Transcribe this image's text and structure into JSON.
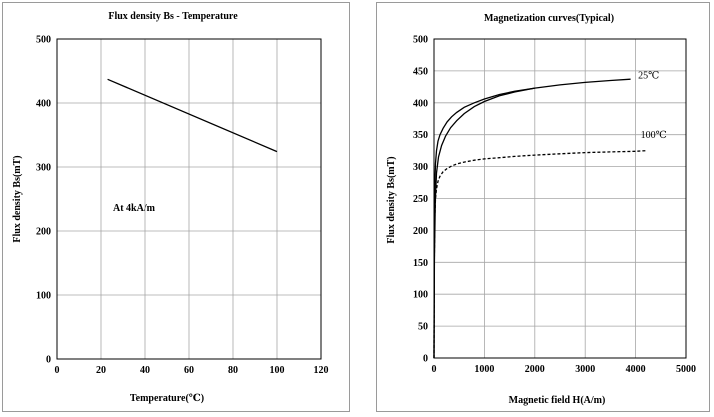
{
  "chart_data": [
    {
      "type": "line",
      "title": "Flux density Bs - Temperature",
      "xlabel": "Temperature(℃)",
      "ylabel": "Flux density Bs(mT)",
      "xlim": [
        0,
        120
      ],
      "ylim": [
        0,
        500
      ],
      "xticks": [
        0,
        20,
        40,
        60,
        80,
        100,
        120
      ],
      "yticks": [
        0,
        100,
        200,
        300,
        400,
        500
      ],
      "grid": true,
      "annotation": "At  4kA/m",
      "series": [
        {
          "x": [
            23,
            100
          ],
          "y": [
            437,
            324
          ],
          "color": "#000000",
          "dash": "solid"
        }
      ]
    },
    {
      "type": "line",
      "title": "Magnetization curves(Typical)",
      "xlabel": "Magnetic field H(A/m)",
      "ylabel": "Flux density Bs(mT)",
      "xlim": [
        0,
        5000
      ],
      "ylim": [
        0,
        500
      ],
      "xticks": [
        0,
        1000,
        2000,
        3000,
        4000,
        5000
      ],
      "yticks": [
        0,
        50,
        100,
        150,
        200,
        250,
        300,
        350,
        400,
        450,
        500
      ],
      "grid": true,
      "series": [
        {
          "name": "25℃",
          "color": "#000000",
          "dash": "solid",
          "x": [
            0,
            5,
            15,
            30,
            50,
            80,
            120,
            180,
            260,
            350,
            450,
            600,
            800,
            1000,
            1300,
            1600,
            2000,
            2500,
            3000,
            3500,
            3900
          ],
          "y": [
            0,
            180,
            270,
            305,
            325,
            340,
            350,
            360,
            370,
            378,
            385,
            393,
            400,
            406,
            413,
            418,
            423,
            428,
            432,
            435,
            437
          ]
        },
        {
          "name": "25℃",
          "color": "#000000",
          "dash": "solid",
          "x": [
            0,
            8,
            25,
            50,
            90,
            150,
            230,
            330,
            450,
            600,
            800,
            1000,
            1300,
            1600,
            2000
          ],
          "y": [
            0,
            150,
            245,
            290,
            315,
            333,
            348,
            361,
            372,
            383,
            394,
            402,
            411,
            417,
            423
          ]
        },
        {
          "name": "100℃",
          "color": "#000000",
          "dash": "dashed",
          "x": [
            0,
            5,
            15,
            30,
            50,
            80,
            120,
            180,
            260,
            350,
            450,
            600,
            800,
            1000,
            1300,
            1600,
            2000,
            2500,
            3000,
            3500,
            4000,
            4200
          ],
          "y": [
            0,
            150,
            220,
            250,
            265,
            277,
            285,
            292,
            297,
            301,
            304,
            307,
            310,
            312,
            314,
            316,
            318,
            320,
            322,
            323,
            324,
            325
          ]
        }
      ],
      "labels": [
        {
          "text": "25℃",
          "x": 4050,
          "y": 438
        },
        {
          "text": "100℃",
          "x": 4100,
          "y": 345
        }
      ]
    }
  ]
}
